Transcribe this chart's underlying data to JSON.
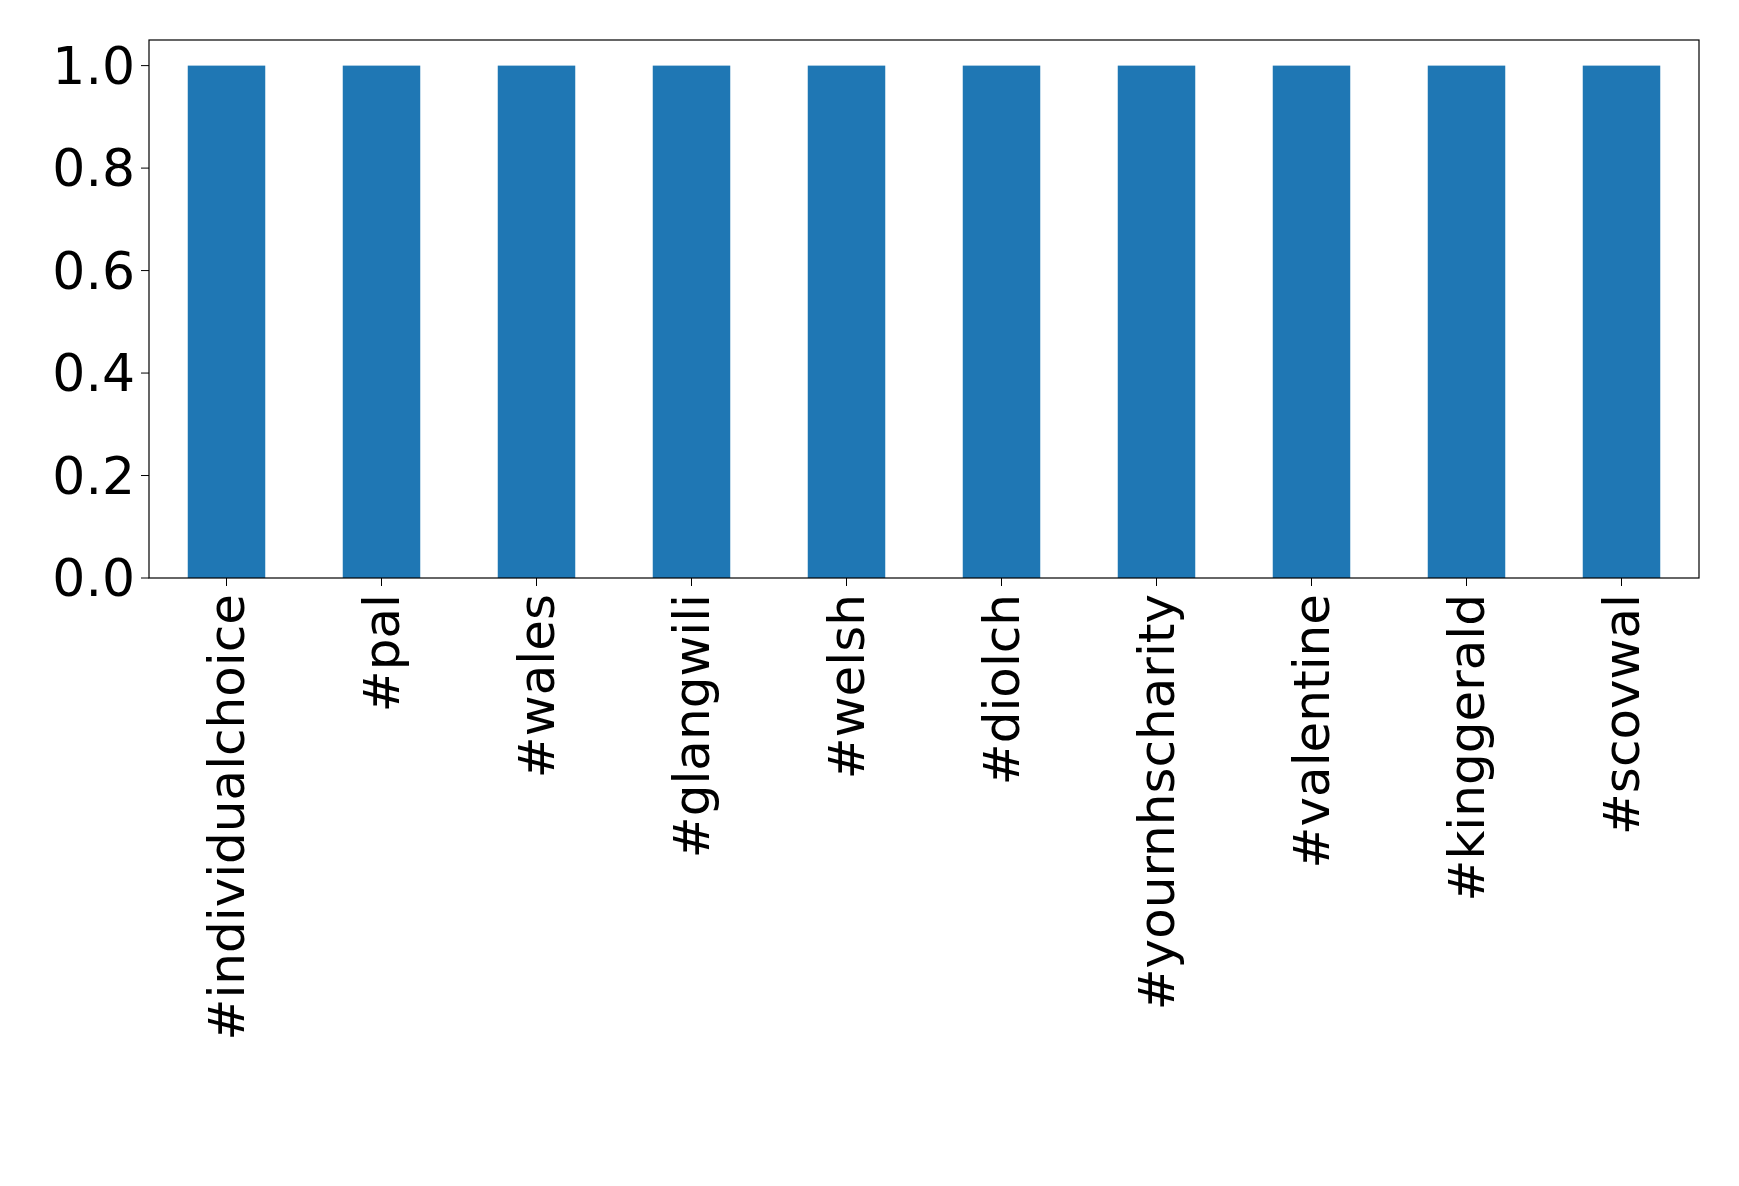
{
  "chart_data": {
    "type": "bar",
    "categories": [
      "#individualchoice",
      "#pal",
      "#wales",
      "#glangwili",
      "#welsh",
      "#diolch",
      "#yournhscharity",
      "#valentine",
      "#kinggerald",
      "#scovwal"
    ],
    "values": [
      1,
      1,
      1,
      1,
      1,
      1,
      1,
      1,
      1,
      1
    ],
    "color": "#1f77b4",
    "ylim": [
      0,
      1.05
    ],
    "yticks": [
      {
        "value": 0,
        "label": "0.0"
      },
      {
        "value": 0.2,
        "label": "0.2"
      },
      {
        "value": 0.4,
        "label": "0.4"
      },
      {
        "value": 0.6,
        "label": "0.6"
      },
      {
        "value": 0.8,
        "label": "0.8"
      },
      {
        "value": 1,
        "label": "1.0"
      }
    ],
    "grid": false
  }
}
